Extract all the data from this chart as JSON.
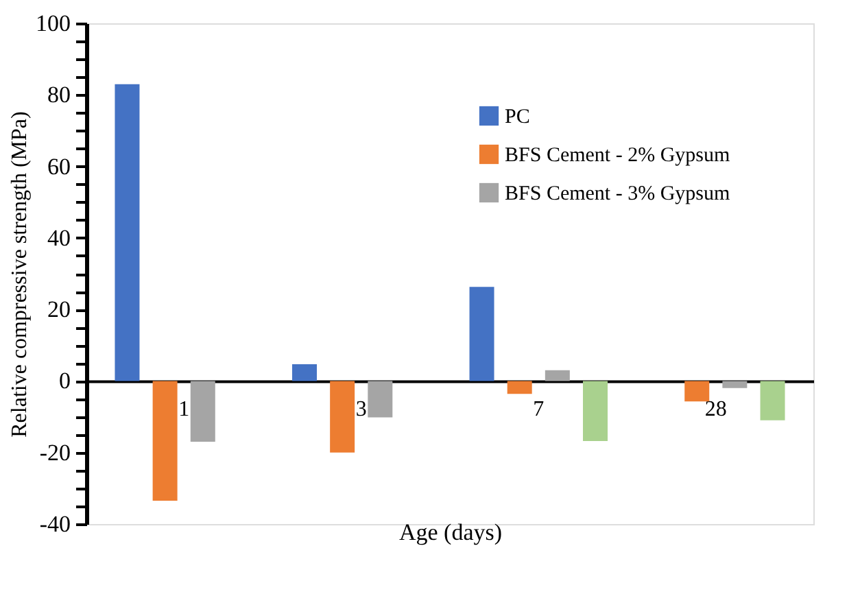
{
  "chart_data": {
    "type": "bar",
    "xlabel": "Age (days)",
    "ylabel": "Relative compressive strength (MPa)",
    "categories": [
      "1",
      "3",
      "7",
      "28"
    ],
    "series": [
      {
        "name": "PC",
        "color": "#4472c4",
        "values": [
          83,
          4.7,
          26.3,
          null
        ]
      },
      {
        "name": "BFS Cement - 2% Gypsum",
        "color": "#ed7d31",
        "values": [
          -33.5,
          -20,
          -3.6,
          -5.7
        ]
      },
      {
        "name": "BFS Cement - 3% Gypsum",
        "color": "#a5a5a5",
        "values": [
          -17,
          -10.2,
          3,
          -2
        ]
      },
      {
        "color": "#a9d18e",
        "values": [
          null,
          null,
          -16.8,
          -11
        ]
      }
    ],
    "ylim": [
      -40,
      100
    ],
    "yticks": [
      -40,
      {
        "value": -35,
        "label": null
      },
      {
        "value": -30,
        "label": null
      },
      {
        "value": -25,
        "label": null
      },
      -20,
      {
        "value": -15,
        "label": null
      },
      {
        "value": -10,
        "label": null
      },
      {
        "value": -5,
        "label": null
      },
      0,
      {
        "value": 5,
        "label": null
      },
      {
        "value": 10,
        "label": null
      },
      {
        "value": 15,
        "label": null
      },
      20,
      {
        "value": 25,
        "label": null
      },
      {
        "value": 30,
        "label": null
      },
      {
        "value": 35,
        "label": null
      },
      40,
      {
        "value": 45,
        "label": null
      },
      {
        "value": 50,
        "label": null
      },
      {
        "value": 55,
        "label": null
      },
      60,
      {
        "value": 65,
        "label": null
      },
      {
        "value": 70,
        "label": null
      },
      {
        "value": 75,
        "label": null
      },
      80,
      {
        "value": 85,
        "label": null
      },
      {
        "value": 90,
        "label": null
      },
      {
        "value": 95,
        "label": null
      },
      100
    ],
    "grid": false,
    "legend": "top right"
  }
}
